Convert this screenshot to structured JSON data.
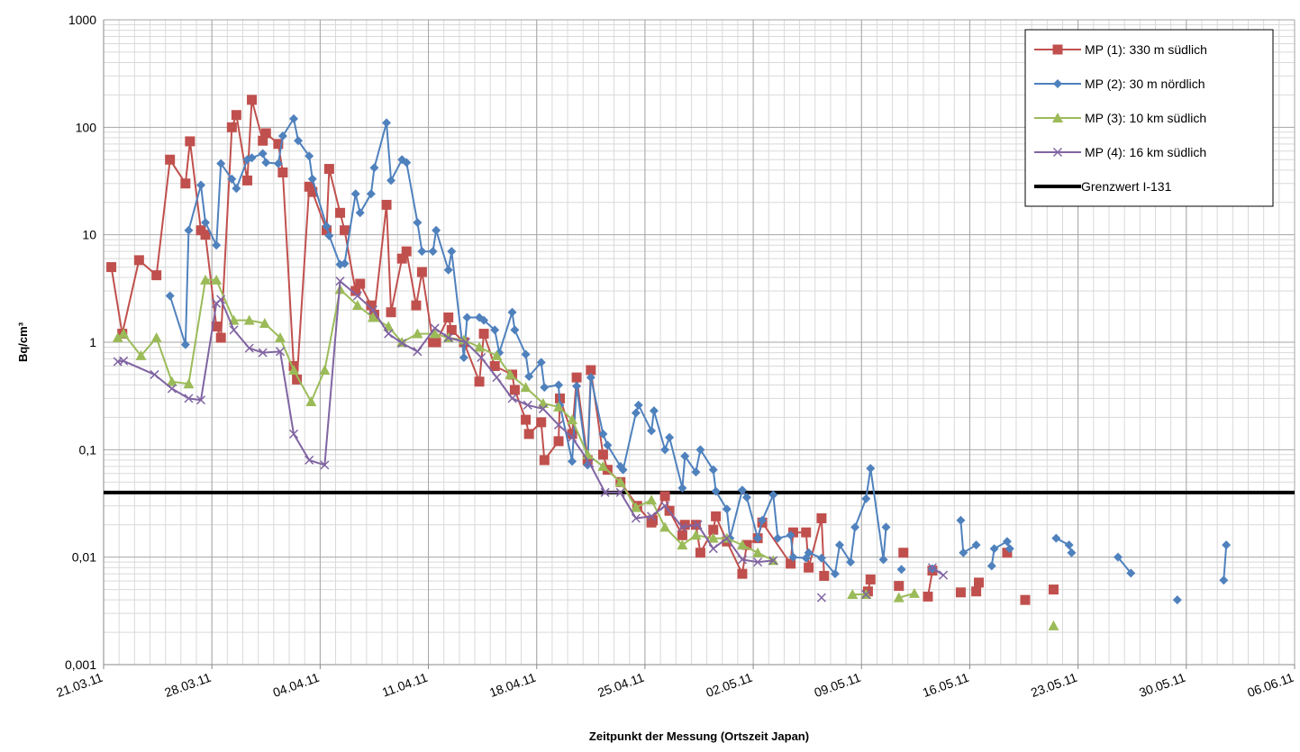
{
  "chart_data": {
    "type": "line",
    "yscale": "log",
    "grid": true,
    "legend": "top-right",
    "ylabel": "Bq/cm³",
    "xlabel": "Zeitpunkt der Messung (Ortszeit Japan)",
    "xlim": [
      "2011-03-21",
      "2011-06-06"
    ],
    "xticks": [
      {
        "value": "2011-03-21",
        "label": "21.03.11"
      },
      {
        "value": "2011-03-28",
        "label": "28.03.11"
      },
      {
        "value": "2011-04-04",
        "label": "04.04.11"
      },
      {
        "value": "2011-04-11",
        "label": "11.04.11"
      },
      {
        "value": "2011-04-18",
        "label": "18.04.11"
      },
      {
        "value": "2011-04-25",
        "label": "25.04.11"
      },
      {
        "value": "2011-05-02",
        "label": "02.05.11"
      },
      {
        "value": "2011-05-09",
        "label": "09.05.11"
      },
      {
        "value": "2011-05-16",
        "label": "16.05.11"
      },
      {
        "value": "2011-05-23",
        "label": "23.05.11"
      },
      {
        "value": "2011-05-30",
        "label": "30.05.11"
      },
      {
        "value": "2011-06-06",
        "label": "06.06.11"
      }
    ],
    "ylim": [
      0.001,
      1000
    ],
    "yticks": [
      {
        "value": 0.001,
        "label": "0,001"
      },
      {
        "value": 0.01,
        "label": "0,01"
      },
      {
        "value": 0.1,
        "label": "0,1"
      },
      1,
      10,
      100,
      1000
    ],
    "reference_lines": [
      {
        "name": "Grenzwert I-131",
        "value": 0.04,
        "color": "#000000"
      }
    ],
    "series": [
      {
        "name": "MP (1): 330 m südlich",
        "color": "#c0504d",
        "marker": "square",
        "x": [
          "2011-03-21T12:00",
          "2011-03-22T05:00",
          "2011-03-23T07:00",
          "2011-03-24T10:00",
          "2011-03-25T07:00",
          "2011-03-26T07:00",
          "2011-03-26T14:00",
          "2011-03-27T07:00",
          "2011-03-27T14:00",
          "2011-03-28T07:00",
          "2011-03-28T14:00",
          "2011-03-29T07:00",
          "2011-03-29T14:00",
          "2011-03-30T07:00",
          "2011-03-30T14:00",
          "2011-03-31T07:00",
          "2011-03-31T12:00",
          "2011-04-01T07:00",
          "2011-04-01T14:00",
          "2011-04-02T07:00",
          "2011-04-02T12:00",
          "2011-04-03T07:00",
          "2011-04-03T12:00",
          "2011-04-04T10:00",
          "2011-04-04T14:00",
          "2011-04-05T07:00",
          "2011-04-05T14:00",
          "2011-04-06T07:00",
          "2011-04-06T14:00",
          "2011-04-07T07:00",
          "2011-04-07T12:00",
          "2011-04-08T07:00",
          "2011-04-08T14:00",
          "2011-04-09T07:00",
          "2011-04-09T14:00",
          "2011-04-10T05:00",
          "2011-04-10T14:00",
          "2011-04-11T07:00",
          "2011-04-11T12:00",
          "2011-04-12T07:00",
          "2011-04-12T12:00",
          "2011-04-13T07:00",
          "2011-04-14T07:00",
          "2011-04-14T14:00",
          "2011-04-15T07:00",
          "2011-04-16T10:00",
          "2011-04-16T14:00",
          "2011-04-17T07:00",
          "2011-04-17T12:00",
          "2011-04-18T07:00",
          "2011-04-18T12:00",
          "2011-04-19T10:00",
          "2011-04-19T12:00",
          "2011-04-20T07:00",
          "2011-04-20T14:00",
          "2011-04-21T07:00",
          "2011-04-21T12:00",
          "2011-04-22T07:00",
          "2011-04-22T14:00",
          "2011-04-23T10:00",
          "2011-04-24T12:00",
          "2011-04-25T10:00",
          "2011-04-25T12:00",
          "2011-04-26T07:00",
          "2011-04-26T14:00",
          "2011-04-27T10:00",
          "2011-04-27T14:00",
          "2011-04-28T07:00",
          "2011-04-28T14:00",
          "2011-04-29T10:00",
          "2011-04-29T14:00",
          "2011-04-30T07:00",
          "2011-05-01T07:00",
          "2011-05-01T14:00",
          "2011-05-02T07:00",
          "2011-05-02T14:00",
          "2011-05-04T10:00",
          "2011-05-04T14:00",
          "2011-05-05T10:00",
          "2011-05-05T14:00",
          "2011-05-06T10:00",
          "2011-05-06T14:00",
          null,
          "2011-05-09T10:00",
          "2011-05-09T14:00",
          null,
          "2011-05-11T10:00",
          null,
          "2011-05-11T17:00",
          null,
          "2011-05-13T07:00",
          "2011-05-13T14:00",
          null,
          "2011-05-15T10:00",
          null,
          "2011-05-16T10:00",
          "2011-05-16T14:00",
          null,
          "2011-05-18T10:00",
          null,
          "2011-05-19T14:00",
          null,
          "2011-05-21T10:00"
        ],
        "values": [
          5,
          1.2,
          5.8,
          4.2,
          50,
          30,
          74,
          11,
          10,
          1.4,
          1.1,
          100,
          130,
          32,
          180,
          75,
          88,
          70,
          38,
          0.6,
          0.45,
          28,
          25,
          11,
          41,
          16,
          11,
          3,
          3.5,
          2.2,
          1.8,
          19,
          1.9,
          6,
          7,
          2.2,
          4.5,
          1,
          1,
          1.7,
          1.3,
          1.0,
          0.43,
          1.2,
          0.6,
          0.5,
          0.36,
          0.19,
          0.14,
          0.18,
          0.08,
          0.12,
          0.3,
          0.14,
          0.47,
          0.08,
          0.55,
          0.09,
          0.065,
          0.05,
          0.03,
          0.021,
          0.022,
          0.037,
          0.027,
          0.016,
          0.02,
          0.02,
          0.011,
          0.018,
          0.024,
          0.014,
          0.007,
          0.013,
          0.015,
          0.021,
          0.0087,
          0.017,
          0.017,
          0.008,
          0.023,
          0.0067,
          null,
          0.0048,
          0.0062,
          null,
          0.0054,
          null,
          0.011,
          null,
          0.0043,
          0.0075,
          null,
          0.0047,
          null,
          0.0048,
          0.0058,
          null,
          0.011,
          null,
          0.004,
          null,
          0.005
        ]
      },
      {
        "name": "MP (2): 30 m nördlich",
        "color": "#4f81bd",
        "marker": "diamond",
        "x": [
          "2011-03-25T07:00",
          "2011-03-26T07:00",
          "2011-03-26T12:00",
          "2011-03-27T07:00",
          "2011-03-27T14:00",
          "2011-03-28T07:00",
          "2011-03-28T14:00",
          "2011-03-29T07:00",
          "2011-03-29T14:00",
          "2011-03-30T07:00",
          "2011-03-30T14:00",
          "2011-03-31T07:00",
          "2011-03-31T12:00",
          "2011-04-01T07:00",
          "2011-04-01T14:00",
          "2011-04-02T07:00",
          "2011-04-02T14:00",
          "2011-04-03T07:00",
          "2011-04-03T12:00",
          "2011-04-04T10:00",
          "2011-04-04T14:00",
          "2011-04-05T07:00",
          "2011-04-05T14:00",
          "2011-04-06T07:00",
          "2011-04-06T14:00",
          "2011-04-07T07:00",
          "2011-04-07T12:00",
          "2011-04-08T07:00",
          "2011-04-08T14:00",
          "2011-04-09T07:00",
          "2011-04-09T14:00",
          "2011-04-10T07:00",
          "2011-04-10T14:00",
          "2011-04-11T07:00",
          "2011-04-11T12:00",
          "2011-04-12T07:00",
          "2011-04-12T12:00",
          "2011-04-13T07:00",
          "2011-04-13T12:00",
          "2011-04-14T07:00",
          "2011-04-14T14:00",
          "2011-04-15T07:00",
          "2011-04-15T14:00",
          "2011-04-16T10:00",
          "2011-04-16T14:00",
          "2011-04-17T07:00",
          "2011-04-17T12:00",
          "2011-04-18T07:00",
          "2011-04-18T12:00",
          "2011-04-19T10:00",
          "2011-04-19T12:00",
          "2011-04-20T07:00",
          "2011-04-20T14:00",
          "2011-04-21T07:00",
          "2011-04-21T12:00",
          "2011-04-22T07:00",
          "2011-04-22T14:00",
          "2011-04-23T10:00",
          "2011-04-23T14:00",
          "2011-04-24T10:00",
          "2011-04-24T14:00",
          "2011-04-25T10:00",
          "2011-04-25T14:00",
          "2011-04-26T07:00",
          "2011-04-26T14:00",
          "2011-04-27T10:00",
          "2011-04-27T14:00",
          "2011-04-28T07:00",
          "2011-04-28T14:00",
          "2011-04-29T10:00",
          "2011-04-29T14:00",
          "2011-04-30T07:00",
          "2011-04-30T12:00",
          "2011-05-01T07:00",
          "2011-05-01T14:00",
          "2011-05-02T07:00",
          "2011-05-02T14:00",
          "2011-05-03T07:00",
          "2011-05-03T14:00",
          "2011-05-04T10:00",
          "2011-05-04T14:00",
          "2011-05-05T10:00",
          "2011-05-05T14:00",
          "2011-05-06T10:00",
          "2011-05-07T07:00",
          "2011-05-07T14:00",
          "2011-05-08T07:00",
          "2011-05-08T14:00",
          "2011-05-09T07:00",
          "2011-05-09T14:00",
          "2011-05-10T10:00",
          "2011-05-10T14:00",
          null,
          "2011-05-11T14:00",
          null,
          "2011-05-13T14:00",
          null,
          "2011-05-15T10:00",
          "2011-05-15T14:00",
          "2011-05-16T10:00",
          null,
          "2011-05-17T10:00",
          "2011-05-17T14:00",
          "2011-05-18T10:00",
          "2011-05-18T14:00",
          null,
          "2011-05-21T14:00",
          "2011-05-22T10:00",
          "2011-05-22T14:00",
          null,
          "2011-05-25T14:00",
          "2011-05-26T10:00",
          null,
          "2011-05-29T10:00",
          null,
          "2011-06-01T10:00",
          "2011-06-01T14:00"
        ],
        "values": [
          2.7,
          0.95,
          11,
          29,
          13,
          8,
          46,
          33,
          27,
          50,
          52,
          57,
          47,
          46,
          83,
          120,
          75,
          54,
          33,
          12,
          9.8,
          5.3,
          5.4,
          24,
          16,
          24,
          42,
          110,
          32,
          50,
          47,
          13,
          7,
          7,
          11,
          4.7,
          7,
          0.72,
          1.7,
          1.7,
          1.6,
          1.3,
          0.8,
          1.9,
          1.3,
          0.77,
          0.48,
          0.65,
          0.38,
          0.4,
          0.26,
          0.078,
          0.39,
          0.072,
          0.47,
          0.14,
          0.11,
          0.07,
          0.065,
          0.22,
          0.26,
          0.15,
          0.23,
          0.1,
          0.13,
          0.044,
          0.087,
          0.062,
          0.1,
          0.065,
          0.041,
          0.028,
          0.015,
          0.042,
          0.036,
          0.015,
          0.022,
          0.038,
          0.015,
          0.016,
          0.01,
          0.0098,
          0.011,
          0.0098,
          0.007,
          0.013,
          0.009,
          0.019,
          0.035,
          0.067,
          0.0095,
          0.019,
          null,
          0.0077,
          null,
          0.0078,
          null,
          0.022,
          0.011,
          0.013,
          null,
          0.0083,
          0.012,
          0.014,
          0.012,
          null,
          0.015,
          0.013,
          0.011,
          null,
          0.01,
          0.0071,
          null,
          0.004,
          null,
          0.0061,
          0.013
        ]
      },
      {
        "name": "MP (3): 10 km südlich",
        "color": "#9bbb59",
        "marker": "triangle",
        "x": [
          "2011-03-21T22:00",
          "2011-03-22T07:00",
          "2011-03-23T10:00",
          "2011-03-24T10:00",
          "2011-03-25T10:00",
          "2011-03-26T12:00",
          "2011-03-27T14:00",
          "2011-03-28T07:00",
          "2011-03-29T10:00",
          "2011-03-30T10:00",
          "2011-03-31T10:00",
          "2011-04-01T10:00",
          "2011-04-02T07:00",
          "2011-04-03T10:00",
          "2011-04-04T07:00",
          "2011-04-05T07:00",
          "2011-04-06T10:00",
          "2011-04-07T10:00",
          "2011-04-08T10:00",
          "2011-04-09T07:00",
          "2011-04-10T07:00",
          "2011-04-11T10:00",
          "2011-04-12T07:00",
          "2011-04-13T07:00",
          "2011-04-14T07:00",
          "2011-04-15T10:00",
          "2011-04-16T07:00",
          "2011-04-17T07:00",
          "2011-04-18T10:00",
          "2011-04-19T10:00",
          "2011-04-20T07:00",
          "2011-04-21T07:00",
          "2011-04-22T07:00",
          "2011-04-23T10:00",
          "2011-04-24T10:00",
          "2011-04-25T10:00",
          "2011-04-26T07:00",
          "2011-04-27T10:00",
          "2011-04-28T07:00",
          "2011-04-29T10:00",
          "2011-04-30T07:00",
          "2011-05-01T07:00",
          "2011-05-02T07:00",
          "2011-05-03T07:00",
          null,
          "2011-05-08T10:00",
          "2011-05-09T07:00",
          null,
          "2011-05-11T10:00",
          "2011-05-12T10:00",
          null,
          "2011-05-21T10:00"
        ],
        "values": [
          1.1,
          1.2,
          0.75,
          1.1,
          0.43,
          0.41,
          3.8,
          3.8,
          1.6,
          1.6,
          1.5,
          1.1,
          0.55,
          0.28,
          0.55,
          3.1,
          2.2,
          1.7,
          1.4,
          1.0,
          1.2,
          1.2,
          1.1,
          1.05,
          0.9,
          0.75,
          0.5,
          0.38,
          0.27,
          0.25,
          0.19,
          0.09,
          0.07,
          0.05,
          0.029,
          0.034,
          0.019,
          0.013,
          0.016,
          0.015,
          0.015,
          0.013,
          0.011,
          0.0093,
          null,
          0.0045,
          0.0045,
          null,
          0.0042,
          0.0046,
          null,
          0.0023
        ]
      },
      {
        "name": "MP (4): 16 km südlich",
        "color": "#8064a2",
        "marker": "cross",
        "x": [
          "2011-03-21T22:00",
          "2011-03-22T07:00",
          "2011-03-24T07:00",
          "2011-03-25T10:00",
          "2011-03-26T12:00",
          "2011-03-27T07:00",
          "2011-03-28T07:00",
          "2011-03-28T14:00",
          "2011-03-29T10:00",
          "2011-03-30T10:00",
          "2011-03-31T07:00",
          "2011-04-01T10:00",
          "2011-04-02T07:00",
          "2011-04-03T07:00",
          "2011-04-04T07:00",
          "2011-04-05T07:00",
          "2011-04-06T10:00",
          "2011-04-07T10:00",
          "2011-04-08T10:00",
          "2011-04-09T07:00",
          "2011-04-10T07:00",
          "2011-04-11T10:00",
          "2011-04-12T07:00",
          "2011-04-13T10:00",
          "2011-04-14T10:00",
          "2011-04-15T10:00",
          "2011-04-16T10:00",
          "2011-04-17T10:00",
          "2011-04-18T10:00",
          "2011-04-19T10:00",
          "2011-04-20T07:00",
          "2011-04-21T10:00",
          "2011-04-22T10:00",
          "2011-04-23T10:00",
          "2011-04-24T10:00",
          "2011-04-25T10:00",
          "2011-04-26T07:00",
          "2011-04-27T10:00",
          "2011-04-28T10:00",
          "2011-04-29T10:00",
          "2011-04-30T07:00",
          "2011-05-01T07:00",
          "2011-05-02T07:00",
          "2011-05-03T07:00",
          null,
          "2011-05-06T10:00",
          null,
          "2011-05-09T07:00",
          null,
          "2011-05-13T14:00",
          "2011-05-14T07:00"
        ],
        "values": [
          0.66,
          0.67,
          0.5,
          0.37,
          0.3,
          0.29,
          2.3,
          2.5,
          1.3,
          0.88,
          0.8,
          0.82,
          0.14,
          0.08,
          0.072,
          3.7,
          2.7,
          2.0,
          1.2,
          0.98,
          0.82,
          1.35,
          1.1,
          1.0,
          0.72,
          0.47,
          0.3,
          0.26,
          0.24,
          0.17,
          0.13,
          0.075,
          0.04,
          0.04,
          0.023,
          0.024,
          0.03,
          0.019,
          0.02,
          0.012,
          0.015,
          0.0095,
          0.009,
          0.0093,
          null,
          0.0042,
          null,
          0.0045,
          null,
          0.008,
          0.0068
        ]
      }
    ]
  }
}
